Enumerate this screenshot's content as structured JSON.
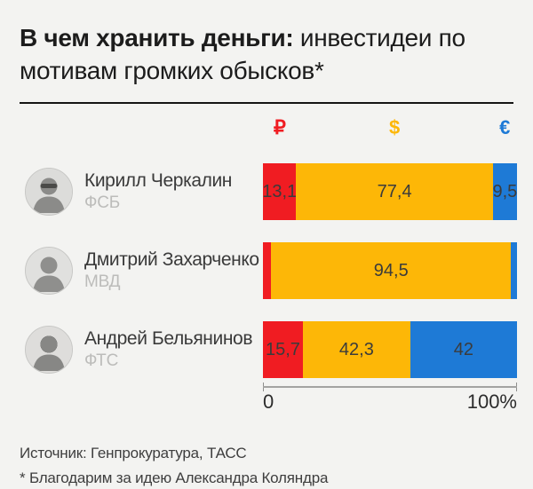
{
  "page": {
    "background": "#f3f3f1"
  },
  "title": {
    "bold": "В чем хранить деньги:",
    "regular": " инвестидеи по мотивам громких обысков*"
  },
  "chart_data": {
    "type": "bar",
    "orientation": "horizontal",
    "stacked": true,
    "unit": "percent",
    "xlim": [
      0,
      100
    ],
    "x_axis_ticks": [
      "0",
      "100%"
    ],
    "legend_position": "top",
    "series_colors": {
      "rub": "#f01c22",
      "usd": "#fdb707",
      "eur": "#1e7ad6"
    },
    "legend": [
      {
        "symbol": "₽",
        "currency": "rub"
      },
      {
        "symbol": "$",
        "currency": "usd"
      },
      {
        "symbol": "€",
        "currency": "eur"
      }
    ],
    "rows": [
      {
        "name": "Кирилл Черкалин",
        "org": "ФСБ",
        "segments": [
          {
            "currency": "rub",
            "value": 13.1,
            "label": "13,1"
          },
          {
            "currency": "usd",
            "value": 77.4,
            "label": "77,4"
          },
          {
            "currency": "eur",
            "value": 9.5,
            "label": "9,5"
          }
        ]
      },
      {
        "name": "Дмитрий Захарченко",
        "org": "МВД",
        "segments": [
          {
            "currency": "rub",
            "value": 3.2,
            "label": ""
          },
          {
            "currency": "usd",
            "value": 94.5,
            "label": "94,5"
          },
          {
            "currency": "eur",
            "value": 2.3,
            "label": ""
          }
        ]
      },
      {
        "name": "Андрей Бельянинов",
        "org": "ФТС",
        "segments": [
          {
            "currency": "rub",
            "value": 15.7,
            "label": "15,7"
          },
          {
            "currency": "usd",
            "value": 42.3,
            "label": "42,3"
          },
          {
            "currency": "eur",
            "value": 42.0,
            "label": "42"
          }
        ]
      }
    ]
  },
  "axis": {
    "min_label": "0",
    "max_label": "100%"
  },
  "footer": {
    "source": "Источник: Генпрокуратура, ТАСС",
    "note": "* Благодарим за идею Александра Коляндра"
  }
}
